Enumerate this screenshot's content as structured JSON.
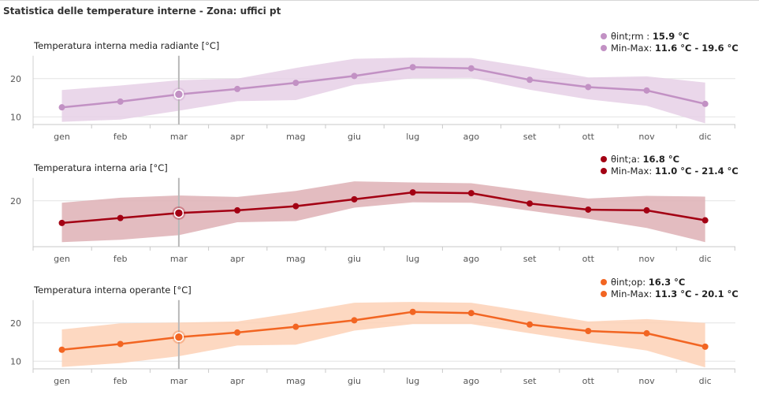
{
  "panel": {
    "title": "Statistica delle temperature interne - Zona: uffici pt"
  },
  "chart_data": [
    {
      "type": "line",
      "title": "Temperatura interna media radiante [°C]",
      "categories": [
        "gen",
        "feb",
        "mar",
        "apr",
        "mag",
        "giu",
        "lug",
        "ago",
        "set",
        "ott",
        "nov",
        "dic"
      ],
      "color": "#c291c4",
      "band_color": "#e6d0e6",
      "y_ticks": [
        10,
        20
      ],
      "ylim": [
        8,
        26
      ],
      "grid": true,
      "legend_position": "top-right",
      "highlight_index": 2,
      "series": [
        {
          "name": "θint;rm",
          "values": [
            12.5,
            14.0,
            15.9,
            17.3,
            18.9,
            20.7,
            23.0,
            22.7,
            19.7,
            17.8,
            16.9,
            13.4
          ]
        }
      ],
      "band": {
        "name": "Min-Max",
        "min": [
          8.7,
          9.3,
          11.6,
          14.1,
          14.4,
          18.4,
          20.1,
          20.2,
          17.1,
          14.6,
          12.9,
          8.3
        ],
        "max": [
          17.0,
          18.2,
          19.6,
          20.0,
          22.8,
          25.2,
          25.5,
          25.4,
          23.0,
          20.3,
          20.6,
          19.0
        ]
      },
      "legend": {
        "line_label": "θint;rm : ",
        "line_value": "15.9 °C",
        "band_label": "Min-Max: ",
        "band_value": "11.6 °C - 19.6 °C"
      }
    },
    {
      "type": "line",
      "title": "Temperatura interna aria [°C]",
      "categories": [
        "gen",
        "feb",
        "mar",
        "apr",
        "mag",
        "giu",
        "lug",
        "ago",
        "set",
        "ott",
        "nov",
        "dic"
      ],
      "color": "#a30013",
      "band_color": "#deb0b5",
      "y_ticks": [
        20
      ],
      "ylim": [
        8,
        26
      ],
      "grid": true,
      "legend_position": "top-right",
      "highlight_index": 2,
      "series": [
        {
          "name": "θint;a",
          "values": [
            14.2,
            15.5,
            16.8,
            17.5,
            18.6,
            20.4,
            22.2,
            22.0,
            19.3,
            17.7,
            17.5,
            14.9
          ]
        }
      ],
      "band": {
        "name": "Min-Max",
        "min": [
          9.2,
          9.8,
          11.0,
          14.4,
          14.7,
          18.2,
          19.6,
          19.5,
          17.4,
          15.3,
          12.9,
          9.2
        ],
        "max": [
          19.5,
          20.8,
          21.4,
          21.0,
          22.6,
          25.1,
          24.8,
          24.6,
          22.6,
          20.6,
          21.3,
          21.1
        ]
      },
      "legend": {
        "line_label": "θint;a: ",
        "line_value": "16.8 °C",
        "band_label": "Min-Max: ",
        "band_value": "11.0 °C - 21.4 °C"
      }
    },
    {
      "type": "line",
      "title": "Temperatura interna operante [°C]",
      "categories": [
        "gen",
        "feb",
        "mar",
        "apr",
        "mag",
        "giu",
        "lug",
        "ago",
        "set",
        "ott",
        "nov",
        "dic"
      ],
      "color": "#f26522",
      "band_color": "#fdd1b6",
      "y_ticks": [
        10,
        20
      ],
      "ylim": [
        8,
        26
      ],
      "grid": true,
      "legend_position": "top-right",
      "highlight_index": 2,
      "series": [
        {
          "name": "θint;op",
          "values": [
            13.0,
            14.5,
            16.3,
            17.5,
            19.0,
            20.7,
            22.9,
            22.6,
            19.6,
            17.9,
            17.3,
            13.8
          ]
        }
      ],
      "band": {
        "name": "Min-Max",
        "min": [
          8.5,
          9.5,
          11.3,
          14.1,
          14.3,
          18.0,
          19.7,
          19.7,
          17.3,
          15.0,
          12.8,
          8.4
        ],
        "max": [
          18.3,
          19.9,
          20.1,
          20.4,
          22.7,
          25.3,
          25.5,
          25.3,
          22.9,
          20.4,
          21.0,
          20.0
        ]
      },
      "legend": {
        "line_label": "θint;op: ",
        "line_value": "16.3 °C",
        "band_label": "Min-Max: ",
        "band_value": "11.3 °C - 20.1 °C"
      }
    }
  ]
}
